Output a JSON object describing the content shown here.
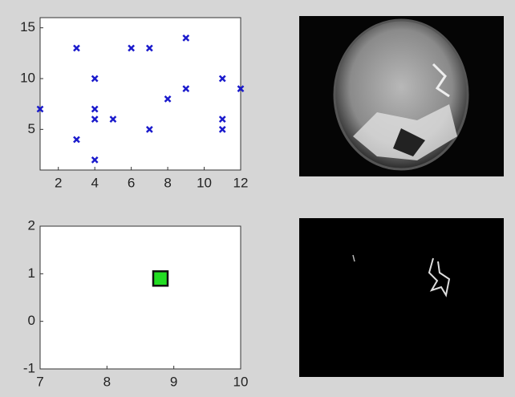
{
  "chart_data": [
    {
      "type": "scatter",
      "color": "#1a1acc",
      "marker": "x",
      "x": [
        1,
        3,
        3,
        4,
        4,
        4,
        4,
        5,
        6,
        7,
        7,
        8,
        9,
        9,
        11,
        11,
        11,
        12
      ],
      "values": [
        7,
        13,
        4,
        10,
        7,
        6,
        2,
        6,
        13,
        13,
        5,
        8,
        14,
        9,
        10,
        6,
        5,
        9
      ],
      "xlim": [
        1,
        12
      ],
      "ylim": [
        1,
        16
      ],
      "xticks": [
        2,
        4,
        6,
        8,
        10,
        12
      ],
      "yticks": [
        5,
        10,
        15
      ]
    },
    {
      "type": "scatter",
      "color": "#22dd22",
      "marker": "square",
      "x": [
        8.8
      ],
      "values": [
        0.9
      ],
      "xlim": [
        7,
        10
      ],
      "ylim": [
        -1,
        2
      ],
      "xticks": [
        7,
        8,
        9,
        10
      ],
      "yticks": [
        -1,
        0,
        1,
        2
      ]
    }
  ]
}
